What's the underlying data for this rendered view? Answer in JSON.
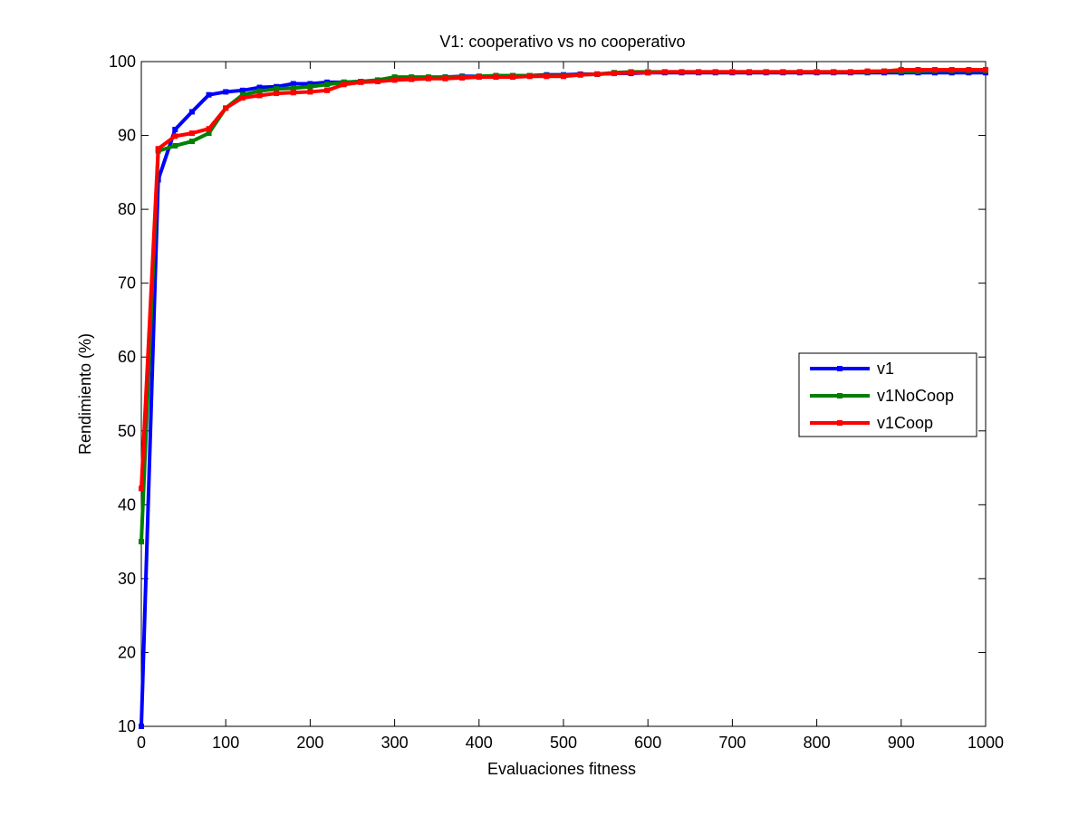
{
  "chart_data": {
    "type": "line",
    "title": "V1: cooperativo vs no cooperativo",
    "xlabel": "Evaluaciones fitness",
    "ylabel": "Rendimiento (%)",
    "xlim": [
      0,
      1000
    ],
    "ylim": [
      10,
      100
    ],
    "xticks": [
      0,
      100,
      200,
      300,
      400,
      500,
      600,
      700,
      800,
      900,
      1000
    ],
    "yticks": [
      10,
      20,
      30,
      40,
      50,
      60,
      70,
      80,
      90,
      100
    ],
    "grid": false,
    "legend_position": "right",
    "x": [
      0,
      20,
      40,
      60,
      80,
      100,
      120,
      140,
      160,
      180,
      200,
      220,
      240,
      260,
      280,
      300,
      320,
      340,
      360,
      380,
      400,
      420,
      440,
      460,
      480,
      500,
      520,
      540,
      560,
      580,
      600,
      620,
      640,
      660,
      680,
      700,
      720,
      740,
      760,
      780,
      800,
      820,
      840,
      860,
      880,
      900,
      920,
      940,
      960,
      980,
      1000
    ],
    "series": [
      {
        "name": "v1",
        "color": "#0000ff",
        "values": [
          10,
          84,
          90.8,
          93.2,
          95.5,
          95.9,
          96.1,
          96.5,
          96.6,
          97.0,
          97.0,
          97.2,
          97.2,
          97.3,
          97.4,
          97.6,
          97.8,
          97.8,
          97.9,
          98.0,
          98.0,
          98.0,
          98.1,
          98.1,
          98.2,
          98.2,
          98.3,
          98.3,
          98.4,
          98.4,
          98.5,
          98.5,
          98.5,
          98.5,
          98.5,
          98.5,
          98.5,
          98.5,
          98.5,
          98.5,
          98.5,
          98.5,
          98.5,
          98.5,
          98.5,
          98.5,
          98.5,
          98.5,
          98.5,
          98.5,
          98.5
        ]
      },
      {
        "name": "v1NoCoop",
        "color": "#008000",
        "values": [
          35,
          87.9,
          88.6,
          89.2,
          90.3,
          93.7,
          95.5,
          96.0,
          96.3,
          96.4,
          96.6,
          96.9,
          97.2,
          97.3,
          97.5,
          97.9,
          97.9,
          97.9,
          97.9,
          97.9,
          98.0,
          98.1,
          98.1,
          98.1,
          98.1,
          98.1,
          98.2,
          98.3,
          98.5,
          98.6,
          98.6,
          98.6,
          98.6,
          98.6,
          98.6,
          98.6,
          98.6,
          98.6,
          98.6,
          98.6,
          98.6,
          98.6,
          98.6,
          98.6,
          98.7,
          98.7,
          98.7,
          98.8,
          98.8,
          98.8,
          98.8
        ]
      },
      {
        "name": "v1Coop",
        "color": "#ff0000",
        "values": [
          42.2,
          88.2,
          89.9,
          90.3,
          90.9,
          93.7,
          95.1,
          95.4,
          95.7,
          95.8,
          95.9,
          96.1,
          96.9,
          97.2,
          97.3,
          97.5,
          97.6,
          97.7,
          97.7,
          97.8,
          97.9,
          97.9,
          97.9,
          98.0,
          98.0,
          98.0,
          98.2,
          98.3,
          98.4,
          98.5,
          98.5,
          98.6,
          98.6,
          98.6,
          98.6,
          98.6,
          98.6,
          98.6,
          98.6,
          98.6,
          98.6,
          98.6,
          98.6,
          98.7,
          98.7,
          98.9,
          98.9,
          98.9,
          98.9,
          98.9,
          98.9
        ]
      }
    ]
  }
}
